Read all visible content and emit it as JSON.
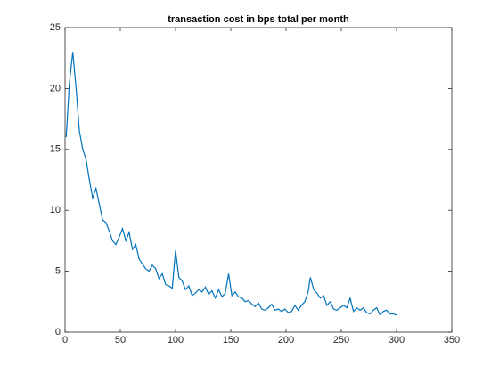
{
  "chart_data": {
    "type": "line",
    "title": "transaction cost in bps total per month",
    "x": [
      1,
      4,
      7,
      10,
      13,
      16,
      19,
      22,
      25,
      28,
      31,
      34,
      37,
      40,
      43,
      46,
      49,
      52,
      55,
      58,
      61,
      64,
      67,
      70,
      73,
      76,
      79,
      82,
      85,
      88,
      91,
      94,
      97,
      100,
      103,
      106,
      109,
      112,
      115,
      118,
      121,
      124,
      127,
      130,
      133,
      136,
      139,
      142,
      145,
      148,
      151,
      154,
      157,
      160,
      163,
      166,
      169,
      172,
      175,
      178,
      181,
      184,
      187,
      190,
      193,
      196,
      199,
      202,
      205,
      208,
      211,
      214,
      217,
      220,
      222,
      225,
      228,
      231,
      234,
      237,
      240,
      243,
      246,
      249,
      252,
      255,
      258,
      261,
      264,
      267,
      270,
      273,
      276,
      279,
      282,
      285,
      288,
      291,
      294,
      297,
      300
    ],
    "series": [
      {
        "color": "#0072bd",
        "values": [
          16,
          20.5,
          23,
          20,
          16.5,
          15,
          14.2,
          12.5,
          11,
          11.8,
          10.5,
          9.2,
          9,
          8.3,
          7.5,
          7.2,
          7.8,
          8.5,
          7.5,
          8.2,
          6.8,
          7.2,
          6.0,
          5.6,
          5.2,
          5.0,
          5.5,
          5.2,
          4.4,
          4.8,
          3.9,
          3.8,
          3.6,
          6.7,
          4.5,
          4.2,
          3.5,
          3.8,
          3.0,
          3.2,
          3.5,
          3.3,
          3.7,
          3.1,
          3.4,
          2.8,
          3.5,
          2.9,
          3.2,
          4.8,
          3.0,
          3.3,
          2.9,
          2.8,
          2.5,
          2.6,
          2.3,
          2.1,
          2.4,
          1.9,
          1.8,
          2.0,
          2.3,
          1.8,
          1.9,
          1.7,
          1.9,
          1.6,
          1.7,
          2.2,
          1.8,
          2.2,
          2.5,
          3.3,
          4.5,
          3.5,
          3.2,
          2.8,
          3.0,
          2.2,
          2.5,
          1.9,
          1.8,
          2.0,
          2.2,
          2.0,
          2.8,
          1.7,
          2.0,
          1.8,
          2.0,
          1.6,
          1.5,
          1.8,
          2.0,
          1.4,
          1.7,
          1.8,
          1.5,
          1.5,
          1.4
        ]
      }
    ],
    "xlim": [
      0,
      350
    ],
    "xticks": [
      0,
      50,
      100,
      150,
      200,
      250,
      300,
      350
    ],
    "ylim": [
      0,
      25
    ],
    "yticks": [
      0,
      5,
      10,
      15,
      20,
      25
    ]
  }
}
